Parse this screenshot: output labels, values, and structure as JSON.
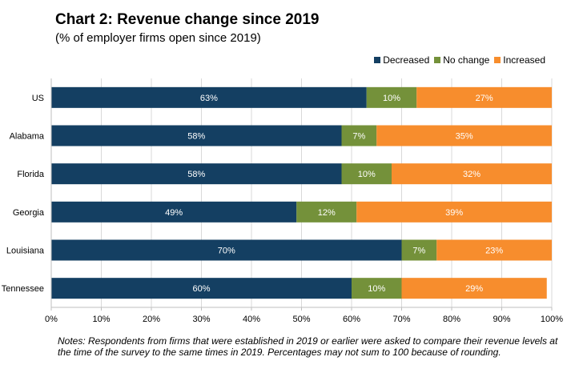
{
  "chart_data": {
    "type": "bar",
    "orientation": "horizontal",
    "stacked": true,
    "title": "Chart 2: Revenue change since 2019",
    "subtitle": "(% of employer firms open since 2019)",
    "categories": [
      "US",
      "Alabama",
      "Florida",
      "Georgia",
      "Louisiana",
      "Tennessee"
    ],
    "series": [
      {
        "name": "Decreased",
        "color": "#143f62",
        "values": [
          63,
          58,
          58,
          49,
          70,
          60
        ]
      },
      {
        "name": "No change",
        "color": "#74913a",
        "values": [
          10,
          7,
          10,
          12,
          7,
          10
        ]
      },
      {
        "name": "Increased",
        "color": "#f78d2d",
        "values": [
          27,
          35,
          32,
          39,
          23,
          29
        ]
      }
    ],
    "data_labels": [
      [
        "63%",
        "58%",
        "58%",
        "49%",
        "70%",
        "60%"
      ],
      [
        "10%",
        "7%",
        "10%",
        "12%",
        "7%",
        "10%"
      ],
      [
        "27%",
        "35%",
        "32%",
        "39%",
        "23%",
        "29%"
      ]
    ],
    "xlim": [
      0,
      100
    ],
    "x_ticks": [
      "0%",
      "10%",
      "20%",
      "30%",
      "40%",
      "50%",
      "60%",
      "70%",
      "80%",
      "90%",
      "100%"
    ],
    "legend_position": "top-right",
    "grid": true
  },
  "notes": "Notes: Respondents from firms that were established in 2019 or earlier were asked to compare their revenue levels at the time of the survey to the same times in 2019. Percentages may not sum to 100 because of rounding."
}
